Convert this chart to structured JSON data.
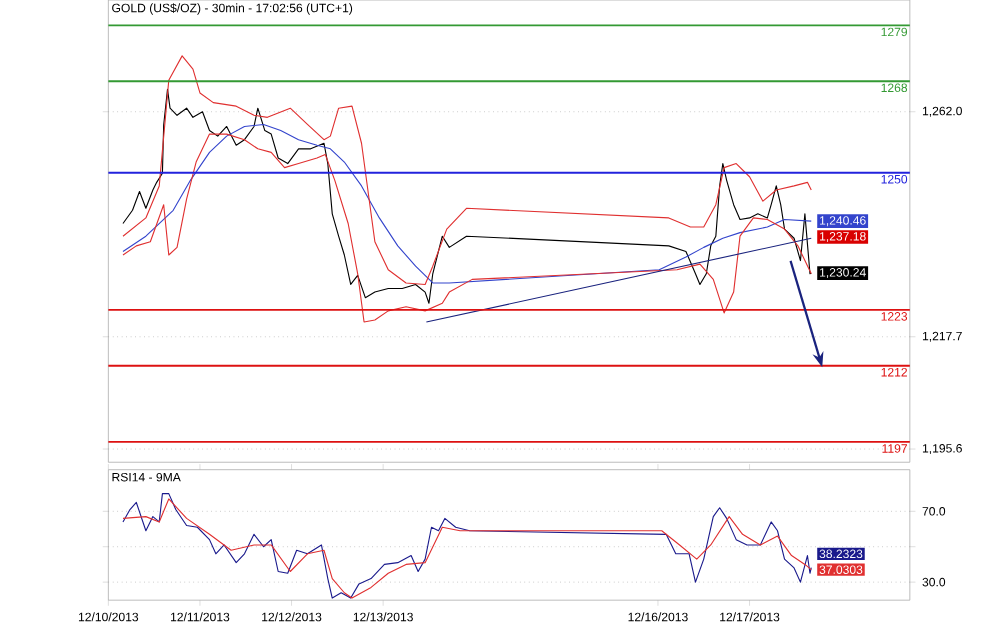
{
  "chart_data": [
    {
      "type": "line",
      "title": "GOLD (US$/OZ) - 30min - 17:02:56 (UTC+1)",
      "xlim": [
        "2013-12-10T00:00",
        "2013-12-18T18:00"
      ],
      "ylim": [
        1193,
        1284
      ],
      "yticks": [
        {
          "value": 1262,
          "label": "1,262.0"
        },
        {
          "value": 1217.7,
          "label": "1,217.7"
        },
        {
          "value": 1195.6,
          "label": "1,195.6"
        }
      ],
      "grid": "y",
      "tick_labels": "y",
      "annotations": [
        "1,237.18"
      ],
      "series": [
        {
          "color": "#000000",
          "x": [
            "2013-12-10T03:50",
            "2013-12-10T06:20",
            "2013-12-10T08:10",
            "2013-12-10T09:50",
            "2013-12-10T11:40",
            "2013-12-10T12:40",
            "2013-12-10T14:10",
            "2013-12-10T14:30",
            "2013-12-10T15:30",
            "2013-12-10T16:10",
            "2013-12-10T18:00",
            "2013-12-10T20:30",
            "2013-12-10T22:10",
            "2013-12-11T00:40",
            "2013-12-11T02:30",
            "2013-12-11T04:40",
            "2013-12-11T07:00",
            "2013-12-11T09:30",
            "2013-12-11T11:40",
            "2013-12-11T14:10",
            "2013-12-11T15:10",
            "2013-12-11T17:00",
            "2013-12-11T18:40",
            "2013-12-11T20:30",
            "2013-12-11T23:00",
            "2013-12-12T01:50",
            "2013-12-12T05:00",
            "2013-12-12T08:30",
            "2013-12-12T09:30",
            "2013-12-12T10:40",
            "2013-12-12T12:20",
            "2013-12-12T13:50",
            "2013-12-12T15:30",
            "2013-12-12T17:20",
            "2013-12-12T19:20",
            "2013-12-12T21:50",
            "2013-12-13T01:20",
            "2013-12-13T05:00",
            "2013-12-13T08:30",
            "2013-12-13T11:00",
            "2013-12-13T12:00",
            "2013-12-13T13:00",
            "2013-12-13T15:30",
            "2013-12-13T17:20",
            "2013-12-13T21:50",
            "2013-12-16T02:50",
            "2013-12-16T07:20",
            "2013-12-16T09:50",
            "2013-12-16T11:00",
            "2013-12-16T12:40",
            "2013-12-16T13:50",
            "2013-12-16T15:10",
            "2013-12-16T16:10",
            "2013-12-16T17:00",
            "2013-12-16T18:00",
            "2013-12-16T19:50",
            "2013-12-16T21:30",
            "2013-12-17T00:00",
            "2013-12-17T02:10",
            "2013-12-17T04:40",
            "2013-12-17T05:40",
            "2013-12-17T07:00",
            "2013-12-17T08:10",
            "2013-12-17T09:10",
            "2013-12-17T11:40",
            "2013-12-17T13:20",
            "2013-12-17T14:30",
            "2013-12-17T15:50",
            "2013-12-17T16:10"
          ],
          "values": [
            1240.0,
            1242.6,
            1246.3,
            1243.0,
            1246.6,
            1248.1,
            1249.9,
            1259.4,
            1266.4,
            1262.7,
            1261.3,
            1262.7,
            1260.9,
            1262.0,
            1258.3,
            1257.2,
            1259.1,
            1255.4,
            1256.5,
            1259.1,
            1262.7,
            1258.3,
            1257.6,
            1252.9,
            1251.8,
            1254.7,
            1254.7,
            1255.8,
            1251.8,
            1241.9,
            1237.5,
            1233.8,
            1228.0,
            1229.8,
            1225.4,
            1226.5,
            1227.2,
            1227.2,
            1228.0,
            1226.5,
            1224.3,
            1230.1,
            1237.5,
            1235.3,
            1237.5,
            1235.6,
            1234.5,
            1230.1,
            1228.0,
            1230.1,
            1235.6,
            1237.5,
            1247.4,
            1251.8,
            1248.5,
            1243.7,
            1240.8,
            1241.1,
            1241.9,
            1241.1,
            1243.7,
            1247.4,
            1243.7,
            1238.9,
            1237.1,
            1232.7,
            1241.9,
            1230.1,
            1230.24
          ],
          "value_labels": [
            null,
            null,
            null,
            null,
            null,
            null,
            null,
            null,
            null,
            null,
            null,
            null,
            null,
            null,
            null,
            null,
            null,
            null,
            null,
            null,
            null,
            null,
            null,
            null,
            null,
            null,
            null,
            null,
            null,
            null,
            null,
            null,
            null,
            null,
            null,
            null,
            null,
            null,
            null,
            null,
            null,
            null,
            null,
            null,
            null,
            null,
            null,
            null,
            null,
            null,
            null,
            null,
            null,
            null,
            null,
            null,
            null,
            null,
            null,
            null,
            null,
            null,
            null,
            null,
            null,
            null,
            null,
            null,
            "1,230.24"
          ]
        },
        {
          "color": "#3344cc",
          "x": [
            "2013-12-10T03:50",
            "2013-12-10T09:50",
            "2013-12-10T17:00",
            "2013-12-10T21:30",
            "2013-12-11T02:30",
            "2013-12-11T07:00",
            "2013-12-11T11:40",
            "2013-12-11T16:40",
            "2013-12-11T21:10",
            "2013-12-12T01:50",
            "2013-12-12T06:40",
            "2013-12-12T10:10",
            "2013-12-12T13:50",
            "2013-12-12T18:20",
            "2013-12-12T23:00",
            "2013-12-13T03:50",
            "2013-12-13T08:30",
            "2013-12-13T13:00",
            "2013-12-13T17:20",
            "2013-12-16T00:20",
            "2013-12-16T07:20",
            "2013-12-16T12:00",
            "2013-12-16T17:00",
            "2013-12-16T21:30",
            "2013-12-17T04:40",
            "2013-12-17T09:10",
            "2013-12-17T16:10"
          ],
          "values": [
            1234.5,
            1237.5,
            1242.6,
            1248.5,
            1254.0,
            1257.2,
            1259.1,
            1259.5,
            1258.3,
            1256.5,
            1255.4,
            1254.7,
            1252.1,
            1247.4,
            1241.1,
            1235.6,
            1231.6,
            1228.3,
            1228.3,
            1230.9,
            1233.4,
            1235.3,
            1237.1,
            1238.2,
            1239.3,
            1240.8,
            1240.46
          ],
          "value_labels": [
            null,
            null,
            null,
            null,
            null,
            null,
            null,
            null,
            null,
            null,
            null,
            null,
            null,
            null,
            null,
            null,
            null,
            null,
            null,
            null,
            null,
            null,
            null,
            null,
            null,
            null,
            "1,240.46"
          ]
        },
        {
          "color": "#e03030",
          "x": [
            "2013-12-10T03:50",
            "2013-12-10T09:50",
            "2013-12-10T13:20",
            "2013-12-10T15:50",
            "2013-12-10T19:20",
            "2013-12-10T22:10",
            "2013-12-11T00:00",
            "2013-12-11T03:30",
            "2013-12-11T09:30",
            "2013-12-11T14:10",
            "2013-12-11T17:40",
            "2013-12-11T23:40",
            "2013-12-12T04:10",
            "2013-12-12T08:30",
            "2013-12-12T10:10",
            "2013-12-12T12:20",
            "2013-12-12T15:50",
            "2013-12-12T18:20",
            "2013-12-12T21:50",
            "2013-12-13T01:20",
            "2013-12-13T06:00",
            "2013-12-13T11:00",
            "2013-12-13T13:00",
            "2013-12-13T16:40",
            "2013-12-13T21:50",
            "2013-12-16T02:50",
            "2013-12-16T08:30",
            "2013-12-16T12:00",
            "2013-12-16T15:10",
            "2013-12-16T17:20",
            "2013-12-16T20:30",
            "2013-12-17T00:00",
            "2013-12-17T03:30",
            "2013-12-17T07:00",
            "2013-12-17T11:40",
            "2013-12-17T15:10",
            "2013-12-17T16:10"
          ],
          "values": [
            1237.5,
            1241.1,
            1247.4,
            1268.2,
            1273.0,
            1270.4,
            1265.7,
            1263.8,
            1263.1,
            1261.3,
            1260.9,
            1262.7,
            1259.5,
            1256.5,
            1257.2,
            1262.7,
            1263.1,
            1255.8,
            1236.4,
            1230.9,
            1228.3,
            1228.0,
            1231.6,
            1238.9,
            1243.0,
            1241.1,
            1239.3,
            1239.3,
            1243.7,
            1251.0,
            1251.8,
            1249.2,
            1244.4,
            1246.6,
            1247.4,
            1248.1,
            1246.6
          ]
        },
        {
          "color": "#e03030",
          "x": [
            "2013-12-10T03:50",
            "2013-12-10T07:20",
            "2013-12-10T11:00",
            "2013-12-10T14:30",
            "2013-12-10T15:50",
            "2013-12-10T18:00",
            "2013-12-10T20:30",
            "2013-12-10T23:00",
            "2013-12-11T02:30",
            "2013-12-11T07:00",
            "2013-12-11T11:40",
            "2013-12-11T15:10",
            "2013-12-11T18:40",
            "2013-12-11T22:10",
            "2013-12-12T01:50",
            "2013-12-12T06:40",
            "2013-12-12T08:50",
            "2013-12-12T11:20",
            "2013-12-12T14:50",
            "2013-12-12T17:20",
            "2013-12-12T19:00",
            "2013-12-12T21:50",
            "2013-12-13T01:20",
            "2013-12-13T06:00",
            "2013-12-13T11:00",
            "2013-12-13T15:30",
            "2013-12-13T17:20",
            "2013-12-13T23:20",
            "2013-12-16T05:00",
            "2013-12-16T11:00",
            "2013-12-16T14:30",
            "2013-12-16T17:20",
            "2013-12-16T19:50",
            "2013-12-16T21:30",
            "2013-12-17T01:00",
            "2013-12-17T04:40",
            "2013-12-17T09:10",
            "2013-12-17T12:40",
            "2013-12-17T16:10"
          ],
          "values": [
            1233.8,
            1235.6,
            1236.4,
            1243.7,
            1233.8,
            1235.3,
            1244.8,
            1252.1,
            1257.6,
            1257.6,
            1256.5,
            1254.7,
            1254.0,
            1251.0,
            1251.8,
            1252.9,
            1253.6,
            1248.5,
            1240.0,
            1230.1,
            1220.6,
            1221.0,
            1222.8,
            1223.6,
            1222.8,
            1224.3,
            1226.5,
            1229.0,
            1230.9,
            1232.0,
            1229.0,
            1222.4,
            1226.5,
            1237.5,
            1241.1,
            1240.8,
            1238.9,
            1235.6,
            1230.1
          ]
        },
        {
          "color": "#1a237e",
          "x": [
            "2013-12-13T11:20",
            "2013-12-17T16:10"
          ],
          "values": [
            1220.6,
            1237.1
          ]
        }
      ],
      "ref_lines": [
        {
          "axis": "y",
          "value": 1279,
          "label": "1279",
          "color": "#339933",
          "line_style": "solid"
        },
        {
          "axis": "y",
          "value": 1268,
          "label": "1268",
          "color": "#339933",
          "line_style": "solid"
        },
        {
          "axis": "y",
          "value": 1250,
          "label": "1250",
          "color": "#2222dd",
          "line_style": "solid"
        },
        {
          "axis": "y",
          "value": 1223,
          "label": "1223",
          "color": "#dd1111",
          "line_style": "solid"
        },
        {
          "axis": "y",
          "value": 1212,
          "label": "1212",
          "color": "#dd1111",
          "line_style": "solid"
        },
        {
          "axis": "y",
          "value": 1197,
          "label": "1197",
          "color": "#dd1111",
          "line_style": "solid"
        }
      ]
    },
    {
      "type": "line",
      "title": "RSI14 - 9MA",
      "xlim": [
        "2013-12-10T00:00",
        "2013-12-18T18:00"
      ],
      "ylim": [
        19.8,
        93.5
      ],
      "xticks": [
        {
          "value": "2013-12-10",
          "label": "12/10/2013"
        },
        {
          "value": "2013-12-11",
          "label": "12/11/2013"
        },
        {
          "value": "2013-12-12",
          "label": "12/12/2013"
        },
        {
          "value": "2013-12-13",
          "label": "12/13/2013"
        },
        {
          "value": "2013-12-16",
          "label": "12/16/2013"
        },
        {
          "value": "2013-12-17",
          "label": "12/17/2013"
        }
      ],
      "yticks": [
        {
          "value": 70,
          "label": "70.0"
        },
        {
          "value": 50,
          "label": null
        },
        {
          "value": 30,
          "label": "30.0"
        }
      ],
      "grid": "y",
      "series": [
        {
          "color": "#1a1a8c",
          "x": [
            "2013-12-10T03:50",
            "2013-12-10T05:40",
            "2013-12-10T07:20",
            "2013-12-10T09:50",
            "2013-12-10T11:40",
            "2013-12-10T13:20",
            "2013-12-10T14:10",
            "2013-12-10T15:50",
            "2013-12-10T17:40",
            "2013-12-10T20:30",
            "2013-12-10T23:20",
            "2013-12-11T02:30",
            "2013-12-11T04:10",
            "2013-12-11T06:20",
            "2013-12-11T09:30",
            "2013-12-11T11:40",
            "2013-12-11T14:10",
            "2013-12-11T16:40",
            "2013-12-11T18:40",
            "2013-12-11T20:30",
            "2013-12-11T23:00",
            "2013-12-12T01:20",
            "2013-12-12T04:10",
            "2013-12-12T07:50",
            "2013-12-12T09:30",
            "2013-12-12T10:40",
            "2013-12-12T13:00",
            "2013-12-12T15:30",
            "2013-12-12T17:40",
            "2013-12-12T20:50",
            "2013-12-13T00:20",
            "2013-12-13T03:50",
            "2013-12-13T07:20",
            "2013-12-13T09:10",
            "2013-12-13T11:00",
            "2013-12-13T12:40",
            "2013-12-13T14:30",
            "2013-12-13T16:10",
            "2013-12-13T19:00",
            "2013-12-13T22:40",
            "2013-12-16T02:10",
            "2013-12-16T04:40",
            "2013-12-16T08:10",
            "2013-12-16T09:50",
            "2013-12-16T12:00",
            "2013-12-16T14:30",
            "2013-12-16T16:10",
            "2013-12-16T18:00",
            "2013-12-16T20:30",
            "2013-12-16T23:20",
            "2013-12-17T02:50",
            "2013-12-17T05:40",
            "2013-12-17T07:20",
            "2013-12-17T09:10",
            "2013-12-17T11:40",
            "2013-12-17T13:20",
            "2013-12-17T15:10",
            "2013-12-17T15:50",
            "2013-12-17T16:10"
          ],
          "values": [
            64,
            71,
            75,
            59,
            67,
            64,
            80,
            80,
            71,
            62,
            61,
            54,
            46,
            51,
            41,
            46,
            57,
            50,
            54,
            36,
            35,
            48,
            46,
            51,
            32,
            21,
            24,
            21,
            29,
            32,
            40,
            41,
            45,
            36,
            43,
            61,
            59,
            66,
            61,
            59,
            57,
            46,
            46,
            30,
            43,
            67,
            72,
            66,
            54,
            51,
            51,
            64,
            59,
            43,
            38,
            30,
            45,
            35,
            38.2323
          ],
          "value_labels": [
            null,
            null,
            null,
            null,
            null,
            null,
            null,
            null,
            null,
            null,
            null,
            null,
            null,
            null,
            null,
            null,
            null,
            null,
            null,
            null,
            null,
            null,
            null,
            null,
            null,
            null,
            null,
            null,
            null,
            null,
            null,
            null,
            null,
            null,
            null,
            null,
            null,
            null,
            null,
            null,
            null,
            null,
            null,
            null,
            null,
            null,
            null,
            null,
            null,
            null,
            null,
            null,
            null,
            null,
            null,
            null,
            null,
            null,
            "38.2323"
          ]
        },
        {
          "color": "#e03030",
          "x": [
            "2013-12-10T03:50",
            "2013-12-10T09:50",
            "2013-12-10T13:20",
            "2013-12-10T15:50",
            "2013-12-10T20:30",
            "2013-12-11T02:30",
            "2013-12-11T08:10",
            "2013-12-11T14:10",
            "2013-12-11T18:40",
            "2013-12-11T23:40",
            "2013-12-12T04:10",
            "2013-12-12T08:30",
            "2013-12-12T10:40",
            "2013-12-12T13:50",
            "2013-12-12T15:50",
            "2013-12-12T20:50",
            "2013-12-13T01:20",
            "2013-12-13T06:00",
            "2013-12-13T11:00",
            "2013-12-13T15:30",
            "2013-12-13T20:10",
            "2013-12-16T01:00",
            "2013-12-16T05:40",
            "2013-12-16T10:10",
            "2013-12-16T13:50",
            "2013-12-16T18:40",
            "2013-12-16T22:10",
            "2013-12-17T02:50",
            "2013-12-17T07:20",
            "2013-12-17T11:00",
            "2013-12-17T14:30",
            "2013-12-17T16:10"
          ],
          "values": [
            66,
            67,
            64,
            77,
            66,
            57,
            48,
            51,
            51,
            36,
            46,
            48,
            32,
            24,
            21,
            27,
            35,
            40,
            41,
            61,
            59,
            59,
            51,
            43,
            51,
            67,
            57,
            51,
            56,
            45,
            40,
            37.0303
          ],
          "value_labels": [
            null,
            null,
            null,
            null,
            null,
            null,
            null,
            null,
            null,
            null,
            null,
            null,
            null,
            null,
            null,
            null,
            null,
            null,
            null,
            null,
            null,
            null,
            null,
            null,
            null,
            null,
            null,
            null,
            null,
            null,
            null,
            "37.0303"
          ]
        }
      ]
    }
  ]
}
